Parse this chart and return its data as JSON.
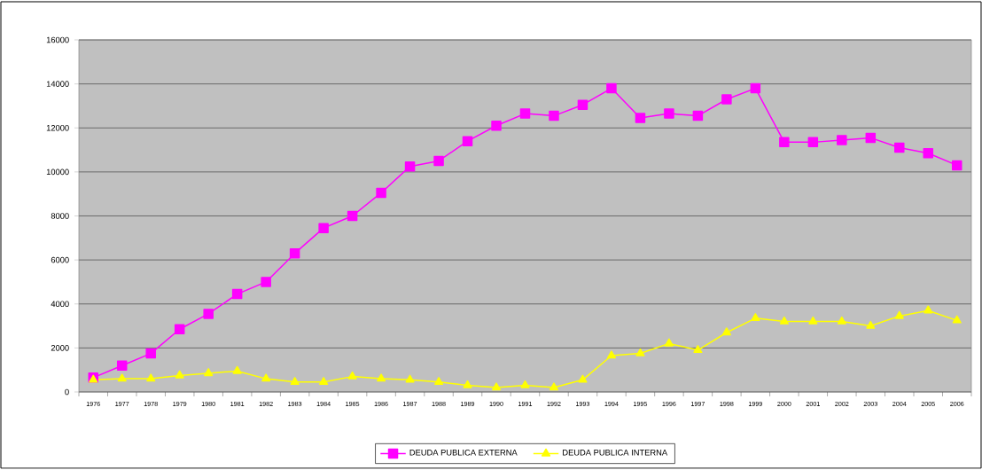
{
  "chart_data": {
    "type": "line",
    "categories": [
      "1976",
      "1977",
      "1978",
      "1979",
      "1980",
      "1981",
      "1982",
      "1983",
      "1984",
      "1985",
      "1986",
      "1987",
      "1988",
      "1989",
      "1990",
      "1991",
      "1992",
      "1993",
      "1994",
      "1995",
      "1996",
      "1997",
      "1998",
      "1999",
      "2000",
      "2001",
      "2002",
      "2003",
      "2004",
      "2005",
      "2006"
    ],
    "series": [
      {
        "name": "DEUDA  PUBLICA EXTERNA",
        "color": "#ff00ff",
        "marker": "square",
        "values": [
          650,
          1200,
          1750,
          2850,
          3550,
          4450,
          5000,
          6300,
          7450,
          8000,
          9050,
          10250,
          10500,
          11400,
          12100,
          12650,
          12550,
          13050,
          13800,
          12450,
          12650,
          12550,
          13300,
          13800,
          11350,
          11350,
          11450,
          11550,
          11100,
          10850,
          10300
        ]
      },
      {
        "name": "DEUDA  PUBLICA INTERNA",
        "color": "#ffff00",
        "marker": "triangle",
        "values": [
          550,
          600,
          600,
          750,
          850,
          950,
          600,
          450,
          450,
          700,
          600,
          550,
          450,
          300,
          200,
          300,
          200,
          550,
          1650,
          1750,
          2200,
          1900,
          2700,
          3350,
          3200,
          3200,
          3200,
          3000,
          3450,
          3700,
          3250
        ]
      }
    ],
    "ylim": [
      0,
      16000
    ],
    "yticks": [
      0,
      2000,
      4000,
      6000,
      8000,
      10000,
      12000,
      14000,
      16000
    ],
    "grid": "y",
    "legend": "bottom",
    "line_style": "solid"
  }
}
